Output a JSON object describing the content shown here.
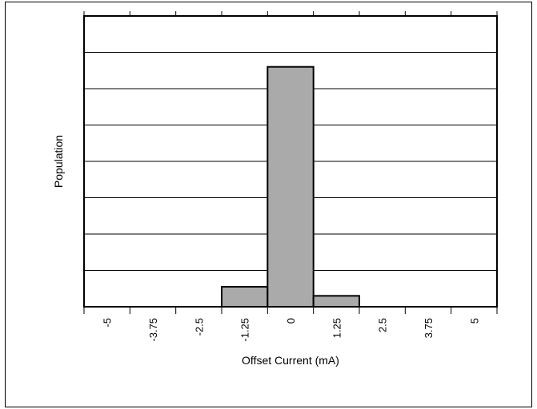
{
  "chart_data": {
    "type": "bar",
    "title": "",
    "xlabel": "Offset Current (mA)",
    "ylabel": "Population",
    "x_ticks": [
      "-5",
      "-3.75",
      "-2.5",
      "-1.25",
      "0",
      "1.25",
      "2.5",
      "3.75",
      "5"
    ],
    "xlim": [
      -5.625,
      5.625
    ],
    "ylim": [
      0,
      8
    ],
    "y_tick_labels": "none",
    "grid": "horizontal",
    "legend": "none",
    "bar_color": "#aaaaaa",
    "bins": [
      {
        "from": -1.875,
        "to": -0.625,
        "value": 0.55
      },
      {
        "from": -0.625,
        "to": 0.625,
        "value": 6.6
      },
      {
        "from": 0.625,
        "to": 1.875,
        "value": 0.3
      }
    ]
  }
}
